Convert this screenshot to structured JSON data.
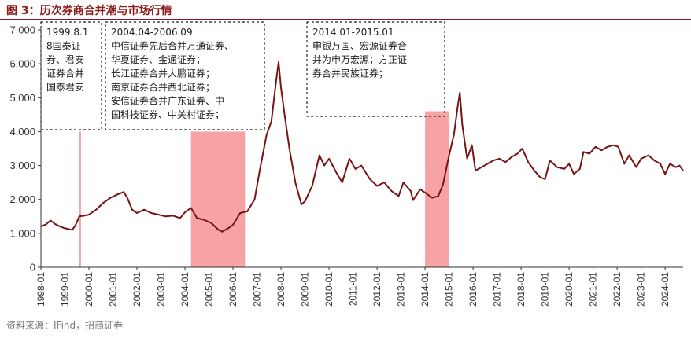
{
  "title": "图 3：历次券商合并潮与市场行情",
  "source": "资料来源：IFind，招商证券",
  "colors": {
    "line": "#7a1414",
    "shade": "#f7a3a6",
    "title": "#8b1a1a",
    "axis": "#333333"
  },
  "chart_data": {
    "type": "line",
    "title": "历次券商合并潮与市场行情",
    "ylim": [
      0,
      7000
    ],
    "yticks": [
      "0",
      "1,000",
      "2,000",
      "3,000",
      "4,000",
      "5,000",
      "6,000",
      "7,000"
    ],
    "ytick_values": [
      0,
      1000,
      2000,
      3000,
      4000,
      5000,
      6000,
      7000
    ],
    "xlim": [
      1998.0,
      2024.75
    ],
    "xticks": [
      "1998-01",
      "1999-01",
      "2000-01",
      "2001-01",
      "2002-01",
      "2003-01",
      "2004-01",
      "2005-01",
      "2006-01",
      "2007-01",
      "2008-01",
      "2009-01",
      "2010-01",
      "2011-01",
      "2012-01",
      "2013-01",
      "2014-01",
      "2015-01",
      "2016-01",
      "2017-01",
      "2018-01",
      "2019-01",
      "2020-01",
      "2021-01",
      "2022-01",
      "2023-01",
      "2024-01"
    ],
    "series": [
      {
        "name": "Index",
        "points": [
          [
            1998.0,
            1200
          ],
          [
            1998.2,
            1260
          ],
          [
            1998.4,
            1380
          ],
          [
            1998.6,
            1270
          ],
          [
            1998.8,
            1200
          ],
          [
            1999.0,
            1150
          ],
          [
            1999.2,
            1120
          ],
          [
            1999.3,
            1100
          ],
          [
            1999.45,
            1250
          ],
          [
            1999.6,
            1500
          ],
          [
            1999.8,
            1520
          ],
          [
            2000.0,
            1550
          ],
          [
            2000.3,
            1700
          ],
          [
            2000.6,
            1900
          ],
          [
            2000.9,
            2050
          ],
          [
            2001.2,
            2150
          ],
          [
            2001.45,
            2220
          ],
          [
            2001.6,
            2050
          ],
          [
            2001.8,
            1700
          ],
          [
            2002.0,
            1600
          ],
          [
            2002.3,
            1700
          ],
          [
            2002.6,
            1600
          ],
          [
            2002.9,
            1550
          ],
          [
            2003.2,
            1500
          ],
          [
            2003.5,
            1520
          ],
          [
            2003.8,
            1450
          ],
          [
            2004.0,
            1620
          ],
          [
            2004.25,
            1750
          ],
          [
            2004.5,
            1450
          ],
          [
            2004.8,
            1400
          ],
          [
            2005.1,
            1300
          ],
          [
            2005.4,
            1100
          ],
          [
            2005.55,
            1050
          ],
          [
            2005.8,
            1150
          ],
          [
            2006.0,
            1250
          ],
          [
            2006.3,
            1600
          ],
          [
            2006.6,
            1650
          ],
          [
            2006.9,
            2000
          ],
          [
            2007.1,
            2800
          ],
          [
            2007.4,
            3900
          ],
          [
            2007.6,
            4300
          ],
          [
            2007.8,
            5500
          ],
          [
            2007.9,
            6050
          ],
          [
            2008.0,
            5300
          ],
          [
            2008.15,
            4500
          ],
          [
            2008.35,
            3500
          ],
          [
            2008.6,
            2500
          ],
          [
            2008.85,
            1850
          ],
          [
            2009.0,
            1950
          ],
          [
            2009.3,
            2400
          ],
          [
            2009.6,
            3300
          ],
          [
            2009.8,
            3000
          ],
          [
            2010.0,
            3200
          ],
          [
            2010.3,
            2800
          ],
          [
            2010.55,
            2500
          ],
          [
            2010.85,
            3200
          ],
          [
            2011.1,
            2900
          ],
          [
            2011.35,
            3000
          ],
          [
            2011.7,
            2600
          ],
          [
            2012.0,
            2400
          ],
          [
            2012.3,
            2500
          ],
          [
            2012.6,
            2250
          ],
          [
            2012.9,
            2100
          ],
          [
            2013.1,
            2500
          ],
          [
            2013.4,
            2250
          ],
          [
            2013.5,
            1980
          ],
          [
            2013.8,
            2300
          ],
          [
            2014.0,
            2200
          ],
          [
            2014.3,
            2050
          ],
          [
            2014.55,
            2100
          ],
          [
            2014.75,
            2450
          ],
          [
            2015.0,
            3300
          ],
          [
            2015.2,
            3900
          ],
          [
            2015.35,
            4700
          ],
          [
            2015.45,
            5150
          ],
          [
            2015.55,
            4200
          ],
          [
            2015.75,
            3200
          ],
          [
            2015.95,
            3600
          ],
          [
            2016.1,
            2850
          ],
          [
            2016.35,
            2950
          ],
          [
            2016.6,
            3050
          ],
          [
            2016.85,
            3150
          ],
          [
            2017.1,
            3200
          ],
          [
            2017.35,
            3100
          ],
          [
            2017.6,
            3250
          ],
          [
            2017.85,
            3350
          ],
          [
            2018.05,
            3500
          ],
          [
            2018.3,
            3100
          ],
          [
            2018.55,
            2850
          ],
          [
            2018.8,
            2650
          ],
          [
            2019.0,
            2600
          ],
          [
            2019.2,
            3150
          ],
          [
            2019.5,
            2950
          ],
          [
            2019.8,
            2900
          ],
          [
            2020.0,
            3050
          ],
          [
            2020.2,
            2750
          ],
          [
            2020.45,
            2900
          ],
          [
            2020.6,
            3400
          ],
          [
            2020.85,
            3350
          ],
          [
            2021.1,
            3550
          ],
          [
            2021.35,
            3450
          ],
          [
            2021.6,
            3550
          ],
          [
            2021.85,
            3600
          ],
          [
            2022.05,
            3550
          ],
          [
            2022.3,
            3050
          ],
          [
            2022.5,
            3300
          ],
          [
            2022.8,
            2950
          ],
          [
            2023.0,
            3200
          ],
          [
            2023.3,
            3300
          ],
          [
            2023.55,
            3150
          ],
          [
            2023.8,
            3050
          ],
          [
            2024.0,
            2750
          ],
          [
            2024.2,
            3050
          ],
          [
            2024.45,
            2950
          ],
          [
            2024.6,
            3000
          ],
          [
            2024.75,
            2850
          ]
        ]
      }
    ],
    "shaded_periods": [
      {
        "start": 1999.58,
        "end": 1999.67,
        "top": 4000
      },
      {
        "start": 2004.25,
        "end": 2006.5,
        "top": 4000
      },
      {
        "start": 2014.0,
        "end": 2015.0,
        "top": 4600
      }
    ],
    "annotations": [
      {
        "name": "merger-wave-1999",
        "lines": [
          "1999.8.1",
          "8国泰证",
          "券、君安",
          "证券合并",
          "国泰君安"
        ]
      },
      {
        "name": "merger-wave-2004",
        "lines": [
          "2004.04-2006.09",
          "中信证券先后合并万通证券、",
          "华夏证券、金通证券；",
          "长江证券合并大鹏证券；",
          "南京证券合并西北证券；",
          "安信证券合并广东证券、中",
          "国科技证券、中关村证券；"
        ]
      },
      {
        "name": "merger-wave-2014",
        "lines": [
          "2014.01-2015.01",
          "申银万国、宏源证券合",
          "并为申万宏源；方正证",
          "券合并民族证券；"
        ]
      }
    ]
  }
}
